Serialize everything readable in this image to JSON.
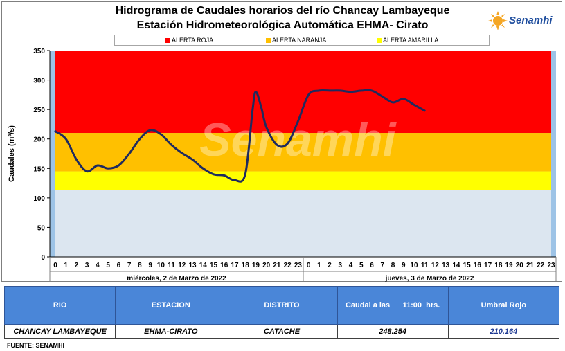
{
  "title_line1": "Hidrograma de Caudales horarios del río Chancay Lambayeque",
  "title_line2": "Estación Hidrometeorológica Automática EHMA- Cirato",
  "logo_text": "Senamhi",
  "legend": [
    {
      "label": "ALERTA ROJA",
      "color": "#ff0000"
    },
    {
      "label": "ALERTA NARANJA",
      "color": "#ffc000"
    },
    {
      "label": "ALERTA AMARILLA",
      "color": "#ffff00"
    }
  ],
  "watermark": "Senamhi",
  "chart_data": {
    "type": "line",
    "ylabel": "Caudales  (m³/s)",
    "ylim": [
      0,
      350
    ],
    "yticks": [
      0,
      50,
      100,
      150,
      200,
      250,
      300,
      350
    ],
    "hour_labels": [
      "0",
      "1",
      "2",
      "3",
      "4",
      "5",
      "6",
      "7",
      "8",
      "9",
      "10",
      "11",
      "12",
      "13",
      "14",
      "15",
      "16",
      "17",
      "18",
      "19",
      "20",
      "21",
      "22",
      "23",
      "0",
      "1",
      "2",
      "3",
      "4",
      "5",
      "6",
      "7",
      "8",
      "9",
      "10",
      "11",
      "12",
      "13",
      "14",
      "15",
      "16",
      "17",
      "18",
      "19",
      "20",
      "21",
      "22",
      "23"
    ],
    "day_labels": [
      "miércoles, 2 de Marzo de 2022",
      "jueves, 3 de Marzo de 2022"
    ],
    "bands": [
      {
        "name": "ALERTA ROJA",
        "from": 210.164,
        "to": 350,
        "color": "#ff0000"
      },
      {
        "name": "ALERTA NARANJA",
        "from": 145,
        "to": 210.164,
        "color": "#ffc000"
      },
      {
        "name": "ALERTA AMARILLA",
        "from": 113,
        "to": 145,
        "color": "#ffff00"
      },
      {
        "name": "",
        "from": 0,
        "to": 113,
        "color": "#dce6f0"
      }
    ],
    "series": [
      {
        "color": "#1f2a5e",
        "x": [
          0,
          1,
          2,
          3,
          4,
          5,
          6,
          7,
          8,
          9,
          10,
          11,
          12,
          13,
          14,
          15,
          16,
          17,
          18,
          18.7,
          19,
          19.5,
          20,
          21,
          22,
          23,
          24,
          25,
          26,
          27,
          28,
          29,
          30,
          31,
          32,
          33,
          34,
          35
        ],
        "y": [
          213,
          200,
          165,
          145,
          155,
          150,
          155,
          175,
          200,
          215,
          208,
          190,
          176,
          165,
          150,
          140,
          138,
          130,
          140,
          250,
          280,
          255,
          220,
          190,
          192,
          230,
          275,
          282,
          282,
          282,
          280,
          282,
          282,
          272,
          262,
          268,
          258,
          248
        ]
      }
    ]
  },
  "table": {
    "headers": [
      "RIO",
      "ESTACION",
      "DISTRITO",
      "Caudal a las      11:00  hrs.",
      "Umbral Rojo"
    ],
    "row": [
      "CHANCAY LAMBAYEQUE",
      "EHMA-CIRATO",
      "CATACHE",
      "248.254",
      "210.164"
    ]
  },
  "source": "FUENTE:  SENAMHI"
}
